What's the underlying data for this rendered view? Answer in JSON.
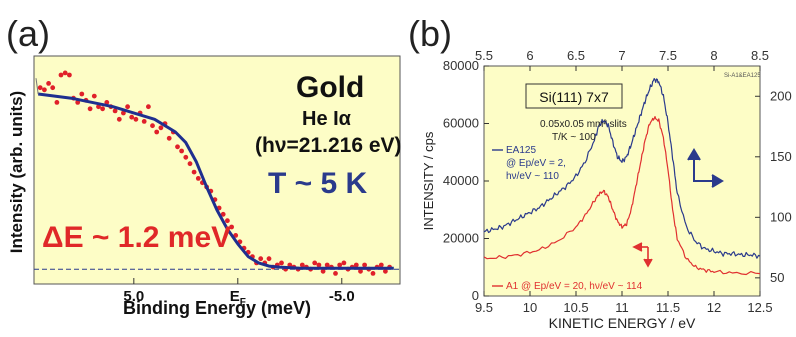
{
  "panel_labels": {
    "a": "(a)",
    "b": "(b)"
  },
  "colors": {
    "panel_a_bg": "#fdfdc6",
    "panel_b_bg": "#fdfdc6",
    "fit": "#1f2f8f",
    "data_red": "#e0202a",
    "blue": "#2a3a8c",
    "red": "#e03030"
  },
  "chart_data": [
    {
      "type": "scatter",
      "panel": "a",
      "xlabel": "Binding Energy (meV)",
      "ylabel": "Intensity (arb. units)",
      "xlim": [
        9.8,
        -7.8
      ],
      "ylim": [
        0,
        1.08
      ],
      "xticks": [
        {
          "value": 5.0,
          "label": "5.0"
        },
        {
          "value": 0,
          "label": "EF"
        },
        {
          "value": -5.0,
          "label": "-5.0"
        }
      ],
      "annotations": {
        "sample": "Gold",
        "source": "He Iα",
        "photon": "(hν=21.216 eV)",
        "temperature": "T ~ 5 K",
        "resolution": "ΔE ~ 1.2 meV"
      },
      "baseline": 0.07,
      "points": [
        [
          9.5,
          0.93
        ],
        [
          9.3,
          0.92
        ],
        [
          9.1,
          0.95
        ],
        [
          8.9,
          0.93
        ],
        [
          8.7,
          0.86
        ],
        [
          8.5,
          0.99
        ],
        [
          8.3,
          1.0
        ],
        [
          8.1,
          0.99
        ],
        [
          7.9,
          0.88
        ],
        [
          7.7,
          0.86
        ],
        [
          7.5,
          0.9
        ],
        [
          7.3,
          0.87
        ],
        [
          7.1,
          0.83
        ],
        [
          6.9,
          0.89
        ],
        [
          6.7,
          0.84
        ],
        [
          6.5,
          0.83
        ],
        [
          6.3,
          0.86
        ],
        [
          6.1,
          0.84
        ],
        [
          5.9,
          0.82
        ],
        [
          5.7,
          0.78
        ],
        [
          5.5,
          0.81
        ],
        [
          5.3,
          0.84
        ],
        [
          5.1,
          0.79
        ],
        [
          4.9,
          0.78
        ],
        [
          4.7,
          0.81
        ],
        [
          4.5,
          0.77
        ],
        [
          4.3,
          0.84
        ],
        [
          4.1,
          0.75
        ],
        [
          3.9,
          0.72
        ],
        [
          3.7,
          0.74
        ],
        [
          3.5,
          0.76
        ],
        [
          3.3,
          0.69
        ],
        [
          3.1,
          0.72
        ],
        [
          2.9,
          0.65
        ],
        [
          2.7,
          0.63
        ],
        [
          2.5,
          0.6
        ],
        [
          2.3,
          0.57
        ],
        [
          2.1,
          0.53
        ],
        [
          1.9,
          0.5
        ],
        [
          1.7,
          0.48
        ],
        [
          1.5,
          0.46
        ],
        [
          1.3,
          0.44
        ],
        [
          1.1,
          0.4
        ],
        [
          0.9,
          0.36
        ],
        [
          0.7,
          0.33
        ],
        [
          0.5,
          0.3
        ],
        [
          0.3,
          0.27
        ],
        [
          0.1,
          0.23
        ],
        [
          -0.1,
          0.2
        ],
        [
          -0.3,
          0.17
        ],
        [
          -0.5,
          0.15
        ],
        [
          -0.7,
          0.13
        ],
        [
          -0.9,
          0.1
        ],
        [
          -1.1,
          0.12
        ],
        [
          -1.3,
          0.1
        ],
        [
          -1.5,
          0.12
        ],
        [
          -1.7,
          0.08
        ],
        [
          -1.9,
          0.09
        ],
        [
          -2.1,
          0.1
        ],
        [
          -2.3,
          0.07
        ],
        [
          -2.5,
          0.09
        ],
        [
          -2.7,
          0.08
        ],
        [
          -2.9,
          0.07
        ],
        [
          -3.1,
          0.09
        ],
        [
          -3.3,
          0.08
        ],
        [
          -3.5,
          0.07
        ],
        [
          -3.7,
          0.1
        ],
        [
          -3.9,
          0.09
        ],
        [
          -4.1,
          0.06
        ],
        [
          -4.3,
          0.09
        ],
        [
          -4.5,
          0.08
        ],
        [
          -4.7,
          0.05
        ],
        [
          -4.9,
          0.09
        ],
        [
          -5.1,
          0.1
        ],
        [
          -5.3,
          0.07
        ],
        [
          -5.5,
          0.08
        ],
        [
          -5.7,
          0.09
        ],
        [
          -5.9,
          0.06
        ],
        [
          -6.1,
          0.09
        ],
        [
          -6.3,
          0.07
        ],
        [
          -6.5,
          0.05
        ],
        [
          -6.7,
          0.08
        ],
        [
          -6.9,
          0.09
        ],
        [
          -7.1,
          0.06
        ],
        [
          -7.3,
          0.08
        ]
      ],
      "fit": [
        [
          9.6,
          0.9
        ],
        [
          8.0,
          0.88
        ],
        [
          6.0,
          0.84
        ],
        [
          4.0,
          0.78
        ],
        [
          3.0,
          0.72
        ],
        [
          2.5,
          0.67
        ],
        [
          2.0,
          0.58
        ],
        [
          1.5,
          0.46
        ],
        [
          1.0,
          0.35
        ],
        [
          0.5,
          0.26
        ],
        [
          0.0,
          0.19
        ],
        [
          -0.5,
          0.13
        ],
        [
          -1.0,
          0.1
        ],
        [
          -1.5,
          0.085
        ],
        [
          -2.0,
          0.08
        ],
        [
          -3.0,
          0.075
        ],
        [
          -5.0,
          0.075
        ],
        [
          -7.5,
          0.075
        ]
      ]
    },
    {
      "type": "line",
      "panel": "b",
      "xlabel": "KINETIC ENERGY / eV",
      "ylabel": "INTENSITY / cps",
      "xlim": [
        9.5,
        12.5
      ],
      "ylim": [
        0,
        80000
      ],
      "xticks": [
        "9.5",
        "10",
        "10.5",
        "11",
        "11.5",
        "12",
        "12.5"
      ],
      "yticks": [
        "0",
        "20000",
        "40000",
        "60000",
        "80000"
      ],
      "top_axis": {
        "xlim": [
          5.5,
          8.5
        ],
        "ticks": [
          "5.5",
          "6",
          "6.5",
          "7",
          "7.5",
          "8",
          "8.5"
        ]
      },
      "right_axis": {
        "ylim": [
          35,
          225
        ],
        "ticks": [
          "50",
          "100",
          "150",
          "200"
        ]
      },
      "box_label": "Si(111) 7x7",
      "tag": "Si-A1&EA125",
      "notes": [
        "0.05x0.05 mm² slits",
        "T/K ~ 100"
      ],
      "series": [
        {
          "name": "EA125 @ Ep/eV = 2, hν/eV ~ 110",
          "legend_lines": [
            "EA125",
            "@ Ep/eV = 2,",
            "hν/eV ~ 110"
          ],
          "color": "#2a3a8c",
          "axis": "top-right",
          "x": [
            5.5,
            5.6,
            5.7,
            5.8,
            5.9,
            6.0,
            6.1,
            6.2,
            6.3,
            6.4,
            6.5,
            6.6,
            6.7,
            6.75,
            6.8,
            6.85,
            6.9,
            6.95,
            7.0,
            7.05,
            7.1,
            7.15,
            7.2,
            7.25,
            7.3,
            7.35,
            7.4,
            7.45,
            7.5,
            7.55,
            7.6,
            7.7,
            7.8,
            7.9,
            8.0,
            8.1,
            8.2,
            8.3,
            8.4,
            8.5
          ],
          "y": [
            88,
            90,
            92,
            96,
            100,
            104,
            108,
            114,
            120,
            126,
            134,
            146,
            164,
            176,
            180,
            176,
            162,
            150,
            146,
            150,
            160,
            172,
            184,
            196,
            206,
            214,
            212,
            200,
            178,
            150,
            120,
            92,
            80,
            74,
            72,
            70,
            70,
            69,
            69,
            68
          ]
        },
        {
          "name": "A1 @ Ep/eV = 20, hν/eV ~ 114",
          "color": "#e03030",
          "axis": "bottom-left",
          "x": [
            9.5,
            9.7,
            9.9,
            10.1,
            10.3,
            10.5,
            10.6,
            10.7,
            10.75,
            10.8,
            10.85,
            10.9,
            10.95,
            11.0,
            11.05,
            11.1,
            11.15,
            11.2,
            11.25,
            11.3,
            11.35,
            11.4,
            11.45,
            11.5,
            11.55,
            11.6,
            11.7,
            11.8,
            11.9,
            12.0,
            12.2,
            12.5
          ],
          "y": [
            13000,
            13500,
            14500,
            16000,
            19000,
            24000,
            28000,
            33000,
            35500,
            36500,
            34500,
            30000,
            26000,
            24000,
            25000,
            30000,
            38000,
            46000,
            54000,
            60000,
            62000,
            61000,
            55000,
            44000,
            30000,
            20000,
            13000,
            10000,
            9000,
            8500,
            8000,
            7800
          ]
        }
      ]
    }
  ]
}
